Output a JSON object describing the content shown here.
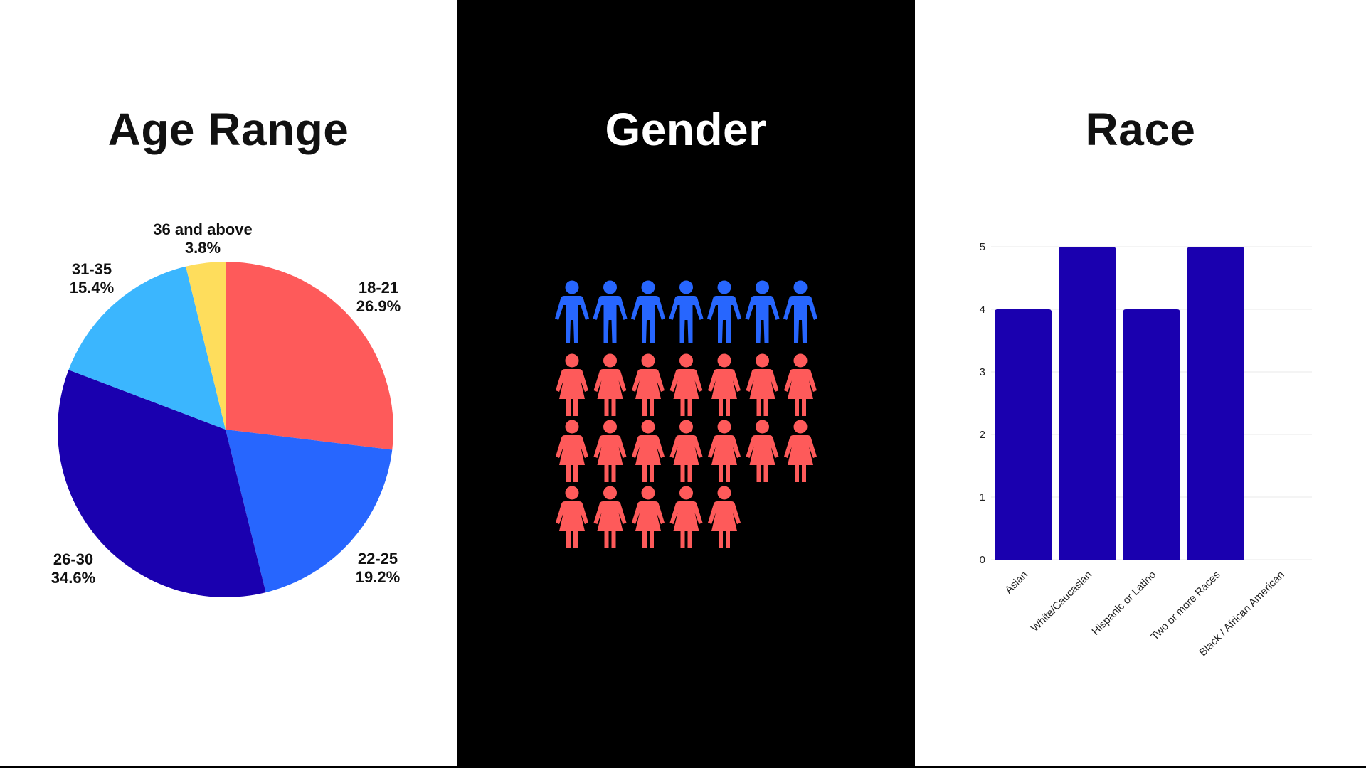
{
  "colors": {
    "red": "#FE5A5A",
    "blue": "#2766FE",
    "navy": "#1A00AF",
    "light_blue": "#3BB6FE",
    "yellow": "#FEDD5C",
    "bar": "#1A00AF",
    "male_icon": "#2766FE",
    "female_icon": "#FE5A5A"
  },
  "age": {
    "title": "Age Range"
  },
  "gender": {
    "title": "Gender",
    "male_count": 7,
    "female_count": 19,
    "icons_per_row": 7
  },
  "race": {
    "title": "Race"
  },
  "chart_data": [
    {
      "type": "pie",
      "title": "Age Range",
      "categories": [
        "18-21",
        "22-25",
        "26-30",
        "31-35",
        "36 and above"
      ],
      "values": [
        26.9,
        19.2,
        34.6,
        15.4,
        3.8
      ],
      "value_labels": [
        "26.9%",
        "19.2%",
        "34.6%",
        "15.4%",
        "3.8%"
      ],
      "colors": [
        "#FE5A5A",
        "#2766FE",
        "#1A00AF",
        "#3BB6FE",
        "#FEDD5C"
      ]
    },
    {
      "type": "bar",
      "title": "Race",
      "categories": [
        "Asian",
        "White/Caucasian",
        "Hispanic or Latino",
        "Two or more Races",
        "Black / African American"
      ],
      "values": [
        4,
        5,
        4,
        5,
        0
      ],
      "ylim": [
        0,
        5
      ],
      "yticks": [
        "0",
        "1",
        "2",
        "3",
        "4",
        "5"
      ],
      "grid": true
    }
  ]
}
